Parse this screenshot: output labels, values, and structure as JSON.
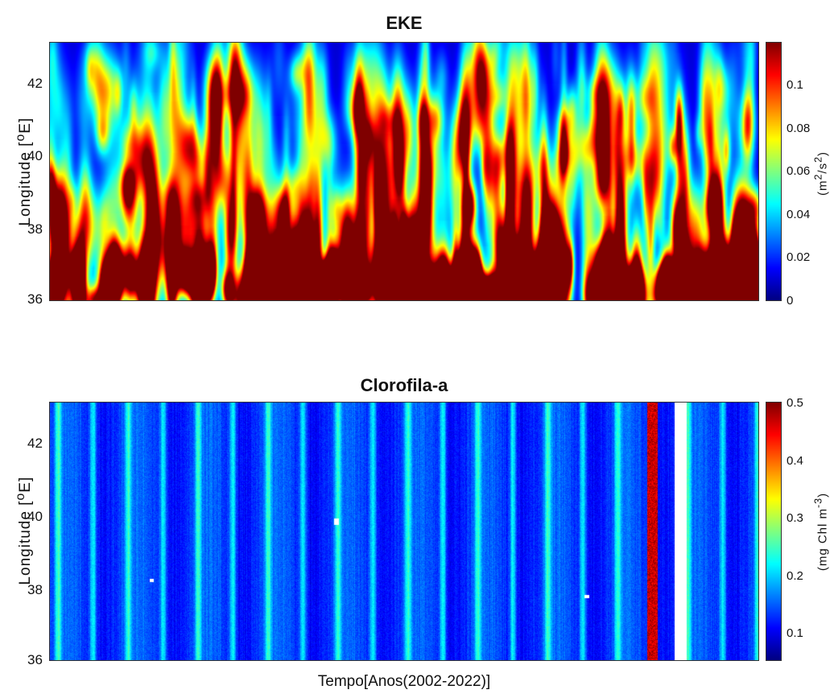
{
  "chart_data": [
    {
      "type": "heatmap",
      "title": "EKE",
      "ylabel": "Longitude [⁰E]",
      "y_ticks": [
        "36",
        "38",
        "40",
        "42"
      ],
      "ylim": [
        36,
        43
      ],
      "colorbar": {
        "label": "(m²/s²)",
        "ticks": [
          "0",
          "0.02",
          "0.04",
          "0.06",
          "0.08",
          "0.1"
        ],
        "range": [
          0,
          0.12
        ],
        "colormap": "jet"
      },
      "description_values": {
        "x_range": [
          2002,
          2022
        ],
        "pattern": "elongated meridional eddy streaks; high values (>0.1) concentrated near 36-39 E"
      }
    },
    {
      "type": "heatmap",
      "title": "Clorofila-a",
      "ylabel": "Longitude [⁰E]",
      "xlabel": "Tempo[Anos(2002-2022)]",
      "y_ticks": [
        "36",
        "38",
        "40",
        "42"
      ],
      "ylim": [
        36,
        43
      ],
      "colorbar": {
        "label": "(mg Chl m⁻³)",
        "ticks": [
          "0.1",
          "0.2",
          "0.3",
          "0.4",
          "0.5"
        ],
        "range": [
          0.05,
          0.5
        ],
        "colormap": "jet"
      },
      "description_values": {
        "x_range": [
          2002,
          2022
        ],
        "pattern": "seasonal vertical bands; high values (~0.5) near end of series; data gap column near end"
      }
    }
  ]
}
